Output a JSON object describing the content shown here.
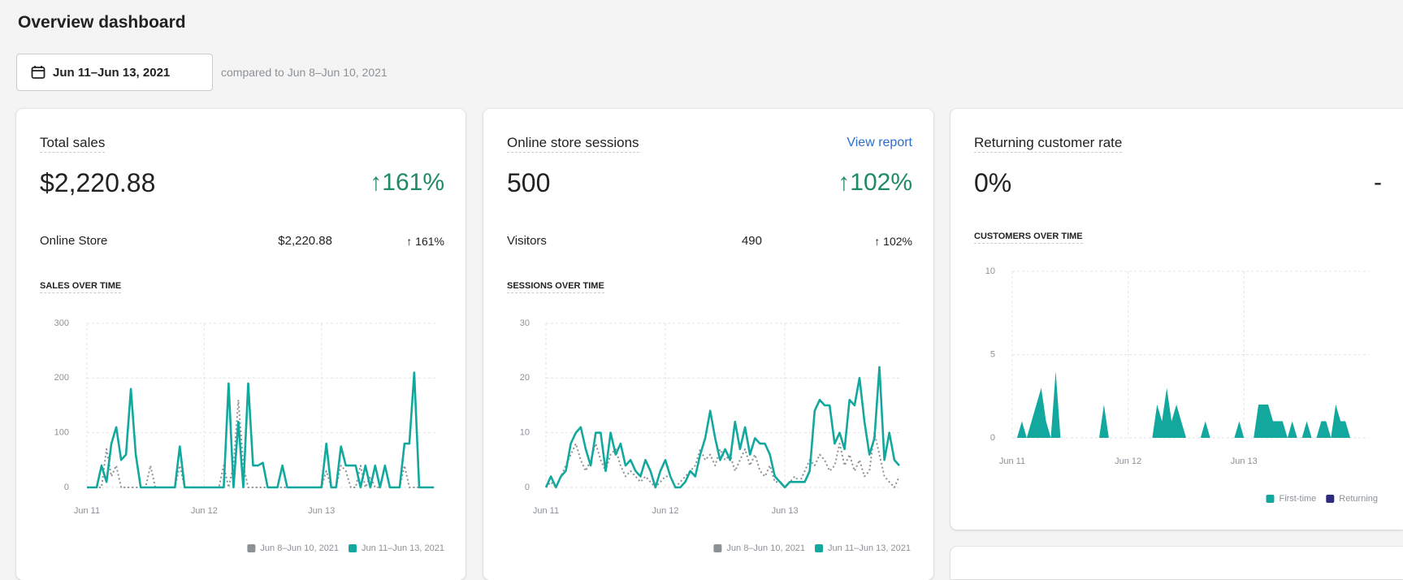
{
  "header": {
    "title": "Overview dashboard",
    "date_range": "Jun 11–Jun 13, 2021",
    "comparison": "compared to Jun 8–Jun 10, 2021"
  },
  "cards": [
    {
      "title": "Total sales",
      "value": "$2,220.88",
      "change": "↑161%",
      "breakdown": {
        "label": "Online Store",
        "value": "$2,220.88",
        "change": "↑ 161%"
      },
      "chart": {
        "type": "line",
        "title": "SALES OVER TIME",
        "x": [
          0,
          1,
          2,
          3,
          4,
          5,
          6,
          7,
          8,
          9,
          10,
          11,
          12,
          13,
          14,
          15,
          16,
          17,
          18,
          19,
          20,
          21,
          22,
          23,
          24,
          25,
          26,
          27,
          28,
          29,
          30,
          31,
          32,
          33,
          34,
          35,
          36,
          37,
          38,
          39,
          40,
          41,
          42,
          43,
          44,
          45,
          46,
          47,
          48,
          49,
          50,
          51,
          52,
          53,
          54,
          55,
          56,
          57,
          58,
          59,
          60,
          61,
          62,
          63,
          64,
          65,
          66,
          67,
          68,
          69,
          70,
          71
        ],
        "xlim": [
          0,
          71
        ],
        "xticks": [
          {
            "value": 0,
            "label": "Jun 11"
          },
          {
            "value": 24,
            "label": "Jun 12"
          },
          {
            "value": 48,
            "label": "Jun 13"
          }
        ],
        "ylim": [
          0,
          300
        ],
        "yticks": [
          0,
          100,
          200,
          300
        ],
        "grid": true,
        "series": [
          {
            "name": "Jun 8–Jun 10, 2021",
            "color": "#8c9196",
            "dashed": true,
            "values": [
              0,
              0,
              0,
              0,
              70,
              20,
              40,
              0,
              0,
              0,
              0,
              0,
              0,
              40,
              0,
              0,
              0,
              0,
              0,
              40,
              0,
              0,
              0,
              0,
              0,
              0,
              0,
              0,
              40,
              0,
              40,
              160,
              40,
              0,
              0,
              0,
              0,
              0,
              0,
              0,
              0,
              0,
              0,
              0,
              0,
              0,
              0,
              0,
              0,
              30,
              0,
              0,
              40,
              30,
              0,
              0,
              40,
              0,
              20,
              0,
              0,
              40,
              0,
              0,
              0,
              40,
              0,
              0,
              0,
              0,
              0,
              0
            ]
          },
          {
            "name": "Jun 11–Jun 13, 2021",
            "color": "#13a89e",
            "dashed": false,
            "values": [
              0,
              0,
              0,
              40,
              10,
              80,
              110,
              50,
              60,
              180,
              60,
              0,
              0,
              0,
              0,
              0,
              0,
              0,
              0,
              75,
              0,
              0,
              0,
              0,
              0,
              0,
              0,
              0,
              0,
              190,
              0,
              120,
              0,
              190,
              40,
              40,
              45,
              0,
              0,
              0,
              40,
              0,
              0,
              0,
              0,
              0,
              0,
              0,
              0,
              80,
              0,
              0,
              75,
              40,
              40,
              40,
              0,
              40,
              0,
              40,
              0,
              40,
              0,
              0,
              0,
              80,
              80,
              210,
              0,
              0,
              0,
              0
            ]
          }
        ]
      }
    },
    {
      "title": "Online store sessions",
      "link": "View report",
      "value": "500",
      "change": "↑102%",
      "breakdown": {
        "label": "Visitors",
        "value": "490",
        "change": "↑ 102%"
      },
      "chart": {
        "type": "line",
        "title": "SESSIONS OVER TIME",
        "x": [
          0,
          1,
          2,
          3,
          4,
          5,
          6,
          7,
          8,
          9,
          10,
          11,
          12,
          13,
          14,
          15,
          16,
          17,
          18,
          19,
          20,
          21,
          22,
          23,
          24,
          25,
          26,
          27,
          28,
          29,
          30,
          31,
          32,
          33,
          34,
          35,
          36,
          37,
          38,
          39,
          40,
          41,
          42,
          43,
          44,
          45,
          46,
          47,
          48,
          49,
          50,
          51,
          52,
          53,
          54,
          55,
          56,
          57,
          58,
          59,
          60,
          61,
          62,
          63,
          64,
          65,
          66,
          67,
          68,
          69,
          70,
          71
        ],
        "xlim": [
          0,
          71
        ],
        "xticks": [
          {
            "value": 0,
            "label": "Jun 11"
          },
          {
            "value": 24,
            "label": "Jun 12"
          },
          {
            "value": 48,
            "label": "Jun 13"
          }
        ],
        "ylim": [
          0,
          30
        ],
        "yticks": [
          0,
          10,
          20,
          30
        ],
        "grid": true,
        "series": [
          {
            "name": "Jun 8–Jun 10, 2021",
            "color": "#8c9196",
            "dashed": true,
            "values": [
              0,
              1,
              0,
              2,
              4,
              6,
              8,
              5,
              3,
              5,
              8,
              5,
              3,
              6,
              7,
              4,
              2,
              3,
              2,
              1,
              2,
              1,
              0,
              1,
              2,
              2,
              0,
              1,
              2,
              3,
              4,
              7,
              5,
              6,
              4,
              7,
              5,
              6,
              3,
              5,
              7,
              4,
              6,
              3,
              2,
              4,
              1,
              1,
              0,
              1,
              2,
              1,
              3,
              5,
              4,
              6,
              5,
              3,
              4,
              8,
              4,
              6,
              3,
              5,
              2,
              3,
              10,
              6,
              2,
              1,
              0,
              2
            ]
          },
          {
            "name": "Jun 11–Jun 13, 2021",
            "color": "#13a89e",
            "dashed": false,
            "values": [
              0,
              2,
              0,
              2,
              3,
              8,
              10,
              11,
              7,
              4,
              10,
              10,
              3,
              10,
              6,
              8,
              4,
              5,
              3,
              2,
              5,
              3,
              0,
              3,
              5,
              2,
              0,
              0,
              1,
              3,
              2,
              6,
              9,
              14,
              9,
              5,
              7,
              5,
              12,
              7,
              11,
              6,
              9,
              8,
              8,
              6,
              2,
              1,
              0,
              1,
              1,
              1,
              1,
              3,
              14,
              16,
              15,
              15,
              8,
              10,
              7,
              16,
              15,
              20,
              12,
              6,
              9,
              22,
              5,
              10,
              5,
              4
            ]
          }
        ]
      }
    },
    {
      "title": "Returning customer rate",
      "value": "0%",
      "change": "-",
      "chart": {
        "type": "area",
        "title": "CUSTOMERS OVER TIME",
        "x": [
          0,
          1,
          2,
          3,
          4,
          5,
          6,
          7,
          8,
          9,
          10,
          11,
          12,
          13,
          14,
          15,
          16,
          17,
          18,
          19,
          20,
          21,
          22,
          23,
          24,
          25,
          26,
          27,
          28,
          29,
          30,
          31,
          32,
          33,
          34,
          35,
          36,
          37,
          38,
          39,
          40,
          41,
          42,
          43,
          44,
          45,
          46,
          47,
          48,
          49,
          50,
          51,
          52,
          53,
          54,
          55,
          56,
          57,
          58,
          59,
          60,
          61,
          62,
          63,
          64,
          65,
          66,
          67,
          68,
          69,
          70,
          71
        ],
        "xlim": [
          0,
          71
        ],
        "xticks": [
          {
            "value": 0,
            "label": "Jun 11"
          },
          {
            "value": 24,
            "label": "Jun 12"
          },
          {
            "value": 48,
            "label": "Jun 13"
          }
        ],
        "ylim": [
          0,
          10
        ],
        "yticks": [
          0,
          5,
          10
        ],
        "grid": true,
        "series": [
          {
            "name": "First-time",
            "color": "#13a89e",
            "values": [
              0,
              0,
              1,
              0,
              1,
              2,
              3,
              1,
              0,
              4,
              0,
              0,
              0,
              0,
              0,
              0,
              0,
              0,
              0,
              2,
              0,
              0,
              0,
              0,
              0,
              0,
              0,
              0,
              0,
              0,
              2,
              1,
              3,
              1,
              2,
              1,
              0,
              0,
              0,
              0,
              1,
              0,
              0,
              0,
              0,
              0,
              0,
              1,
              0,
              0,
              0,
              2,
              2,
              2,
              1,
              1,
              1,
              0,
              1,
              0,
              0,
              1,
              0,
              0,
              1,
              1,
              0,
              2,
              1,
              1,
              0,
              0
            ]
          },
          {
            "name": "Returning",
            "color": "#2e2a7d",
            "values": [
              0,
              0,
              0,
              0,
              0,
              0,
              0,
              0,
              0,
              0,
              0,
              0,
              0,
              0,
              0,
              0,
              0,
              0,
              0,
              0,
              0,
              0,
              0,
              0,
              0,
              0,
              0,
              0,
              0,
              0,
              0,
              0,
              0,
              0,
              0,
              0,
              0,
              0,
              0,
              0,
              0,
              0,
              0,
              0,
              0,
              0,
              0,
              0,
              0,
              0,
              0,
              0,
              0,
              0,
              0,
              0,
              0,
              0,
              0,
              0,
              0,
              0,
              0,
              0,
              0,
              0,
              0,
              0,
              0,
              0,
              0,
              0
            ]
          }
        ]
      }
    }
  ]
}
